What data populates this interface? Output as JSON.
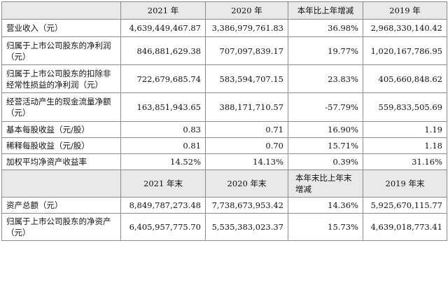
{
  "header1": [
    "2021 年",
    "2020 年",
    "本年比上年增减",
    "2019 年"
  ],
  "rows1": [
    {
      "label": "营业收入（元）",
      "values": [
        "4,639,449,467.87",
        "3,386,979,761.83",
        "36.98%",
        "2,968,330,140.42"
      ]
    },
    {
      "label": "归属于上市公司股东的净利润（元）",
      "values": [
        "846,881,629.38",
        "707,097,839.17",
        "19.77%",
        "1,020,167,786.95"
      ]
    },
    {
      "label": "归属于上市公司股东的扣除非经常性损益的净利润（元）",
      "values": [
        "722,679,685.74",
        "583,594,707.15",
        "23.83%",
        "405,660,848.62"
      ]
    },
    {
      "label": "经营活动产生的现金流量净额（元）",
      "values": [
        "163,851,943.65",
        "388,171,710.57",
        "-57.79%",
        "559,833,505.69"
      ]
    },
    {
      "label": "基本每股收益（元/股）",
      "values": [
        "0.83",
        "0.71",
        "16.90%",
        "1.19"
      ]
    },
    {
      "label": "稀释每股收益（元/股）",
      "values": [
        "0.81",
        "0.70",
        "15.71%",
        "1.18"
      ]
    },
    {
      "label": "加权平均净资产收益率",
      "values": [
        "14.52%",
        "14.13%",
        "0.39%",
        "31.16%"
      ]
    }
  ],
  "header2": [
    "2021 年末",
    "2020 年末",
    "本年末比上年末增减",
    "2019 年末"
  ],
  "rows2": [
    {
      "label": "资产总额（元）",
      "values": [
        "8,849,787,273.48",
        "7,738,673,953.42",
        "14.36%",
        "5,925,670,115.77"
      ]
    },
    {
      "label": "归属于上市公司股东的净资产（元）",
      "values": [
        "6,405,957,775.70",
        "5,535,383,023.37",
        "15.73%",
        "4,639,018,773.41"
      ]
    }
  ]
}
